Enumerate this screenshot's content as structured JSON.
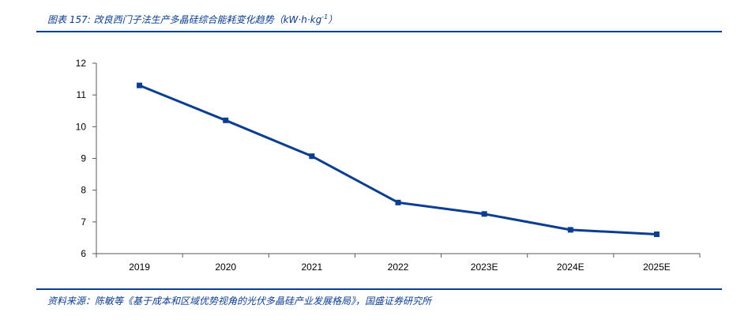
{
  "header": {
    "title_prefix": "图表 157:",
    "title_main": "改良西门子法生产多晶硅综合能耗变化趋势（",
    "title_unit_a": "kW·h·kg",
    "title_unit_sup": "-1",
    "title_suffix": "）"
  },
  "footer": {
    "source_label": "资料来源：",
    "source_text": "陈敏等《基于成本和区域优势视角的光伏多晶硅产业发展格局》，国盛证券研究所"
  },
  "colors": {
    "accent": "#0b3d91",
    "series": "#0b3d91"
  },
  "chart_data": {
    "type": "line",
    "categories": [
      "2019",
      "2020",
      "2021",
      "2022",
      "2023E",
      "2024E",
      "2025E"
    ],
    "series": [
      {
        "values": [
          11.3,
          10.2,
          9.07,
          7.61,
          7.25,
          6.75,
          6.61
        ]
      }
    ],
    "title": "改良西门子法生产多晶硅综合能耗变化趋势（kW·h·kg-1）",
    "xlabel": "",
    "ylabel": "",
    "ylim": [
      6,
      12
    ],
    "yticks": [
      "6",
      "7",
      "8",
      "9",
      "10",
      "11",
      "12"
    ],
    "grid": false,
    "legend": "none",
    "marker": "square"
  }
}
